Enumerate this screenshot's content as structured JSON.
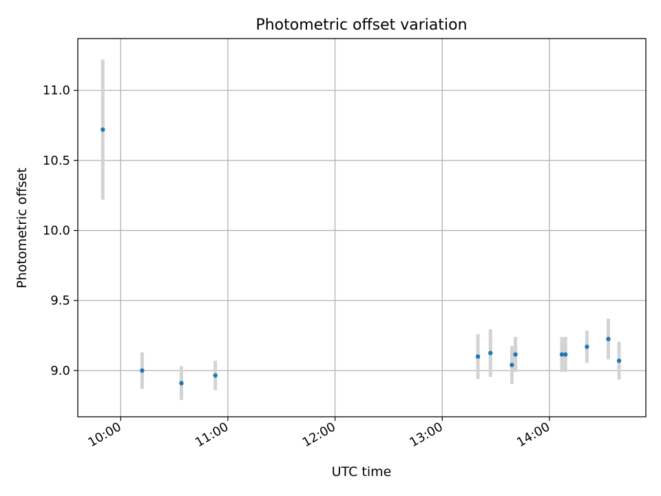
{
  "chart_data": {
    "type": "scatter",
    "title": "Photometric offset variation",
    "xlabel": "UTC time",
    "ylabel": "Photometric offset",
    "x_tick_labels": [
      "10:00",
      "11:00",
      "12:00",
      "13:00",
      "14:00"
    ],
    "y_tick_labels": [
      "9.0",
      "9.5",
      "10.0",
      "10.5",
      "11.0"
    ],
    "y_ticks": [
      9.0,
      9.5,
      10.0,
      10.5,
      11.0
    ],
    "xlim": [
      "09:36",
      "14:54"
    ],
    "ylim": [
      8.67,
      11.37
    ],
    "grid": true,
    "legend": "none",
    "point_color": "#1f77b4",
    "errorbar_color": "#d3d3d3",
    "points": [
      {
        "x": "09:50",
        "y": 10.72,
        "err": 0.5
      },
      {
        "x": "10:12",
        "y": 9.0,
        "err": 0.13
      },
      {
        "x": "10:34",
        "y": 8.91,
        "err": 0.12
      },
      {
        "x": "10:53",
        "y": 8.965,
        "err": 0.105
      },
      {
        "x": "13:20",
        "y": 9.1,
        "err": 0.16
      },
      {
        "x": "13:27",
        "y": 9.125,
        "err": 0.17
      },
      {
        "x": "13:39",
        "y": 9.04,
        "err": 0.135
      },
      {
        "x": "13:41",
        "y": 9.115,
        "err": 0.125
      },
      {
        "x": "14:07",
        "y": 9.115,
        "err": 0.125
      },
      {
        "x": "14:09",
        "y": 9.115,
        "err": 0.125
      },
      {
        "x": "14:21",
        "y": 9.17,
        "err": 0.115
      },
      {
        "x": "14:33",
        "y": 9.225,
        "err": 0.145
      },
      {
        "x": "14:39",
        "y": 9.07,
        "err": 0.135
      }
    ]
  }
}
